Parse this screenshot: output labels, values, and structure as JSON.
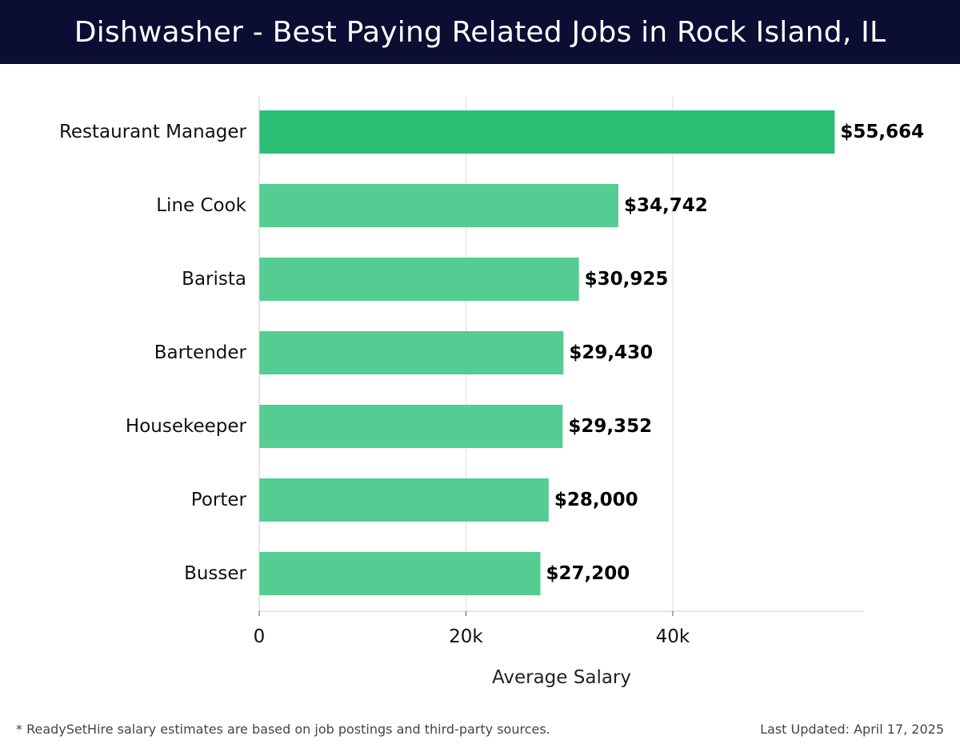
{
  "header": {
    "title": "Dishwasher - Best Paying Related Jobs in Rock Island, IL"
  },
  "chart_data": {
    "type": "bar",
    "orientation": "horizontal",
    "title": "Dishwasher - Best Paying Related Jobs in Rock Island, IL",
    "xlabel": "Average Salary",
    "ylabel": "",
    "categories": [
      "Restaurant Manager",
      "Line Cook",
      "Barista",
      "Bartender",
      "Housekeeper",
      "Porter",
      "Busser"
    ],
    "values": [
      55664,
      34742,
      30925,
      29430,
      29352,
      28000,
      27200
    ],
    "value_labels": [
      "$55,664",
      "$34,742",
      "$30,925",
      "$29,430",
      "$29,352",
      "$28,000",
      "$27,200"
    ],
    "xticks": [
      0,
      20000,
      40000
    ],
    "xtick_labels": [
      "0",
      "20k",
      "40k"
    ],
    "xlim": [
      0,
      58500
    ],
    "grid": "vertical",
    "colors": {
      "highlight": "#2bbf75",
      "bar": "#55cc91",
      "grid": "#dddddd",
      "axis": "#cccccc",
      "label": "#111111",
      "value_label": "#000000"
    }
  },
  "footer": {
    "note": "* ReadySetHire salary estimates are based on job postings and third-party sources.",
    "updated": "Last Updated: April 17, 2025"
  }
}
